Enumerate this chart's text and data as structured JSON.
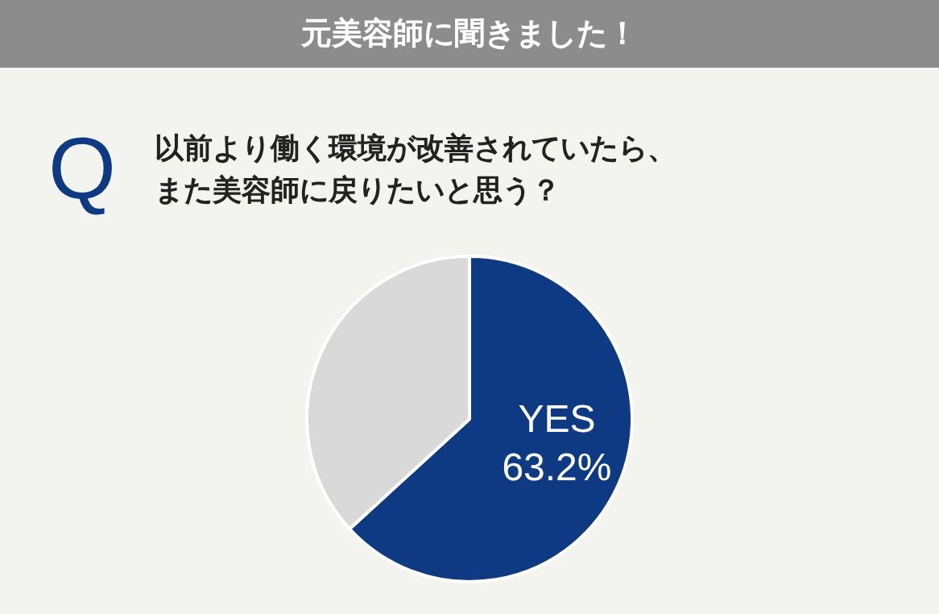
{
  "chart_data": {
    "type": "pie",
    "title": "元美容師に聞きました！",
    "subtitle": "以前より働く環境が改善されていたら、また美容師に戻りたいと思う？",
    "annotations": [
      "Q"
    ],
    "categories": [
      "YES",
      null
    ],
    "values": [
      63.2,
      36.8
    ],
    "colors": [
      "#0e3a83",
      "#d9d9d9"
    ],
    "value_labels": [
      "63.2%",
      null
    ],
    "legend": false
  }
}
